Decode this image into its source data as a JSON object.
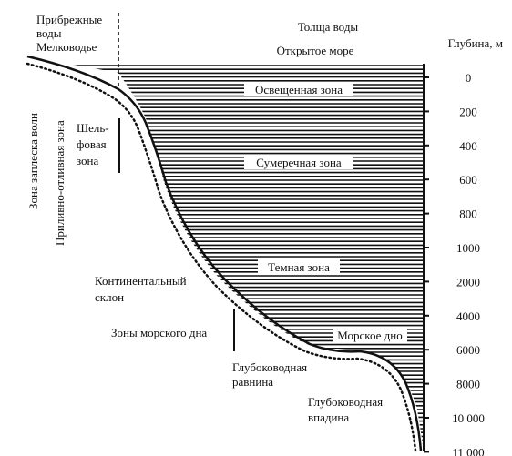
{
  "labels": {
    "coastal_waters_line1": "Прибрежные",
    "coastal_waters_line2": "воды",
    "shallows": "Мелководье",
    "water_column": "Толща воды",
    "open_sea": "Открытое море",
    "depth_header": "Глубина, м",
    "lit_zone": "Освещенная зона",
    "twilight_zone": "Сумеречная зона",
    "dark_zone": "Темная зона",
    "sea_floor": "Морское дно",
    "shelf_line1": "Шель-",
    "shelf_line2": "фовая",
    "shelf_line3": "зона",
    "splash_zone": "Зона заплеска волн",
    "tidal_zone": "Приливно-отливная зона",
    "continental_line1": "Континентальный",
    "continental_line2": "склон",
    "seabed_zones": "Зоны морского дна",
    "abyssal_line1": "Глубоководная",
    "abyssal_line2": "равнина",
    "trench_line1": "Глубоководная",
    "trench_line2": "впадина"
  },
  "depth_ticks": [
    "0",
    "200",
    "400",
    "600",
    "800",
    "1000",
    "2000",
    "4000",
    "6000",
    "8000",
    "10 000",
    "11 000"
  ],
  "colors": {
    "ink": "#111111",
    "background": "#ffffff"
  }
}
